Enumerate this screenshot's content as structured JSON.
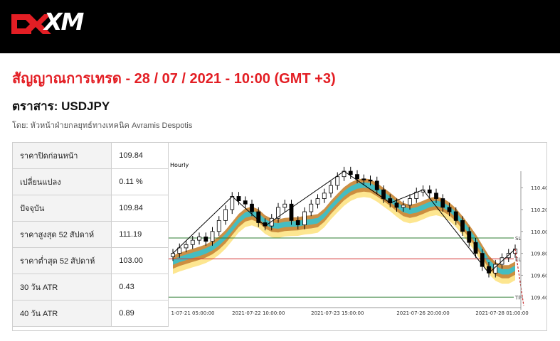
{
  "brand": {
    "name": "XM"
  },
  "title": "สัญญาณการเทรด - 28 / 07 / 2021 - 10:00 (GMT +3)",
  "instrument": "ตราสาร: USDJPY",
  "author": "โดย: หัวหน้าฝ่ายกลยุทธ์ทางเทคนิค Avramis Despotis",
  "colors": {
    "title": "#e31e24",
    "topbar": "#000000"
  },
  "stats": [
    {
      "label": "ราคาปิดก่อนหน้า",
      "value": "109.84"
    },
    {
      "label": "เปลี่ยนแปลง",
      "value": "0.11 %"
    },
    {
      "label": "ปัจจุบัน",
      "value": "109.84"
    },
    {
      "label": "ราคาสูงสุด 52 สัปดาห์",
      "value": "111.19"
    },
    {
      "label": "ราคาต่ำสุด 52 สัปดาห์",
      "value": "103.00"
    },
    {
      "label": "30 วัน ATR",
      "value": "0.43"
    },
    {
      "label": "40 วัน ATR",
      "value": "0.89"
    }
  ],
  "chart_data": {
    "type": "candlestick",
    "timeframe_label": "Hourly",
    "x_tick_labels": [
      "1-07-21 05:00:00",
      "2021-07-22 10:00:00",
      "2021-07-23 15:00:00",
      "2021-07-26 20:00:00",
      "2021-07-28 01:00:00"
    ],
    "y_tick_labels": [
      "110.40",
      "110.20",
      "110.00",
      "109.80",
      "109.60",
      "109.40"
    ],
    "ylim": [
      109.35,
      110.55
    ],
    "levels": [
      {
        "name": "SL",
        "value": 109.94,
        "color": "#2e7d32"
      },
      {
        "name": "EL",
        "value": 109.75,
        "color": "#d32f2f"
      },
      {
        "name": "TP",
        "value": 109.4,
        "color": "#2e7d32"
      }
    ],
    "closes": [
      109.8,
      109.85,
      109.88,
      109.92,
      109.95,
      109.91,
      110.0,
      110.1,
      110.2,
      110.32,
      110.28,
      110.25,
      110.18,
      110.08,
      110.05,
      110.12,
      110.22,
      110.25,
      110.1,
      110.06,
      110.18,
      110.25,
      110.3,
      110.35,
      110.42,
      110.5,
      110.55,
      110.52,
      110.48,
      110.47,
      110.46,
      110.38,
      110.3,
      110.26,
      110.22,
      110.24,
      110.3,
      110.36,
      110.38,
      110.35,
      110.3,
      110.22,
      110.18,
      110.1,
      110.0,
      109.9,
      109.8,
      109.68,
      109.62,
      109.7,
      109.76,
      109.8,
      109.84
    ],
    "series": [
      {
        "name": "upper band",
        "color": "#fde58a"
      },
      {
        "name": "outer band",
        "color": "#c98a3c"
      },
      {
        "name": "inner band",
        "color": "#3cc0c8"
      }
    ]
  }
}
